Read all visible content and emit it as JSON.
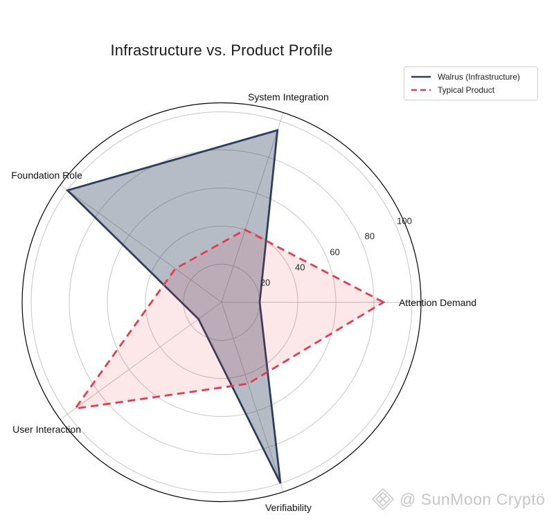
{
  "title": "Infrastructure vs. Product Profile",
  "legend": {
    "position": "upper right",
    "items": [
      {
        "label": "Walrus (Infrastructure)",
        "color": "#2c3e5c",
        "style": "solid"
      },
      {
        "label": "Typical Product",
        "color": "#e63b4d",
        "style": "dashed"
      }
    ]
  },
  "watermark": {
    "icon": "diamond-logo-icon",
    "handle": "@ SunMoon Cryptö",
    "color": "#c6c6c6"
  },
  "chart_data": {
    "type": "radar",
    "categories": [
      "Attention Demand",
      "System Integration",
      "Foundation Role",
      "User Interaction",
      "Verifiability"
    ],
    "series": [
      {
        "name": "Walrus (Infrastructure)",
        "values": [
          20,
          95,
          100,
          15,
          100
        ],
        "color": "#2c3e5c",
        "line_style": "solid",
        "fill_opacity": 0.35
      },
      {
        "name": "Typical Product",
        "values": [
          85,
          40,
          30,
          95,
          45
        ],
        "color": "#e63b4d",
        "line_style": "dashed",
        "fill_opacity": 0.12
      }
    ],
    "radial_ticks": [
      20,
      40,
      60,
      80,
      100
    ],
    "rlim": [
      0,
      105
    ],
    "start_angle_deg": 0,
    "direction": "counterclockwise",
    "grid": true,
    "grid_color": "#c9c5bf",
    "outer_ring_color": "#000000",
    "tick_label_angle_deg": 24
  }
}
